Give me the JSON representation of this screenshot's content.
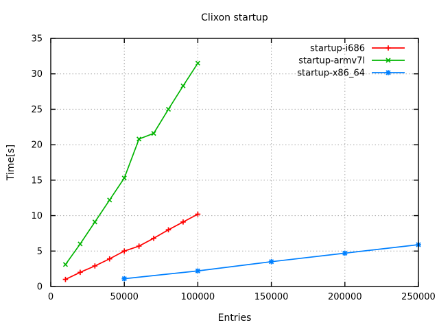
{
  "chart_data": {
    "type": "line",
    "title": "Clixon startup",
    "xlabel": "Entries",
    "ylabel": "Time[s]",
    "xlim": [
      0,
      250000
    ],
    "ylim": [
      0,
      35
    ],
    "x_ticks": [
      0,
      50000,
      100000,
      150000,
      200000,
      250000
    ],
    "x_tick_labels": [
      "0",
      "50000",
      "100000",
      "150000",
      "200000",
      "250000"
    ],
    "y_ticks": [
      0,
      5,
      10,
      15,
      20,
      25,
      30,
      35
    ],
    "y_tick_labels": [
      "0",
      "5",
      "10",
      "15",
      "20",
      "25",
      "30",
      "35"
    ],
    "grid": true,
    "grid_color": "#a8a8a8",
    "border_color": "#000000",
    "legend_position": "top-right-inside",
    "series": [
      {
        "name": "startup-i686",
        "color": "#ff0000",
        "marker": "plus",
        "x": [
          10000,
          20000,
          30000,
          40000,
          50000,
          60000,
          70000,
          80000,
          90000,
          100000
        ],
        "y": [
          1.0,
          2.0,
          2.9,
          3.9,
          5.0,
          5.7,
          6.8,
          8.0,
          9.1,
          10.2
        ]
      },
      {
        "name": "startup-armv7l",
        "color": "#00b400",
        "marker": "cross",
        "x": [
          10000,
          20000,
          30000,
          40000,
          50000,
          60000,
          70000,
          80000,
          90000,
          100000
        ],
        "y": [
          3.1,
          6.0,
          9.1,
          12.2,
          15.3,
          20.8,
          21.6,
          25.0,
          28.3,
          31.5
        ]
      },
      {
        "name": "startup-x86_64",
        "color": "#0080ff",
        "marker": "asterisk",
        "x": [
          50000,
          100000,
          150000,
          200000,
          250000
        ],
        "y": [
          1.1,
          2.2,
          3.5,
          4.7,
          5.9
        ]
      }
    ]
  }
}
